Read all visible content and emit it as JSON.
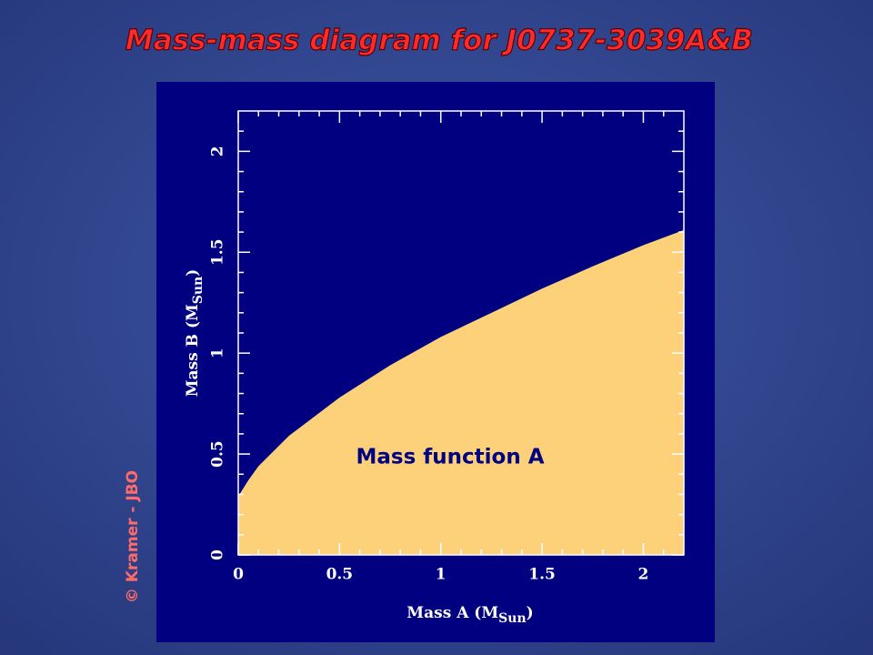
{
  "slide_title": "Mass-mass diagram for J0737-3039A&B",
  "credit": "© Kramer - JBO",
  "chart_data": {
    "type": "area",
    "x": [
      0,
      0.05,
      0.1,
      0.25,
      0.5,
      0.75,
      1,
      1.25,
      1.5,
      1.75,
      2,
      2.2
    ],
    "values": [
      0.29,
      0.37,
      0.44,
      0.59,
      0.78,
      0.94,
      1.08,
      1.2,
      1.32,
      1.43,
      1.535,
      1.61
    ],
    "color": "#fdd17a",
    "annotation": "Mass function A",
    "xlabel": {
      "main": "Mass A (M",
      "sub": "Sun",
      "close": ")"
    },
    "ylabel": {
      "main": "Mass B (M",
      "sub": "Sun",
      "close": ")"
    },
    "xlim": [
      0,
      2.2
    ],
    "ylim": [
      0,
      2.2
    ],
    "xticks": [
      0,
      0.5,
      1,
      1.5,
      2
    ],
    "yticks": [
      0,
      0.5,
      1,
      1.5,
      2
    ],
    "minor_ticks": [
      0.1,
      0.2,
      0.3,
      0.4,
      0.6,
      0.7,
      0.8,
      0.9,
      1.1,
      1.2,
      1.3,
      1.4,
      1.6,
      1.7,
      1.8,
      1.9,
      2.1
    ]
  }
}
